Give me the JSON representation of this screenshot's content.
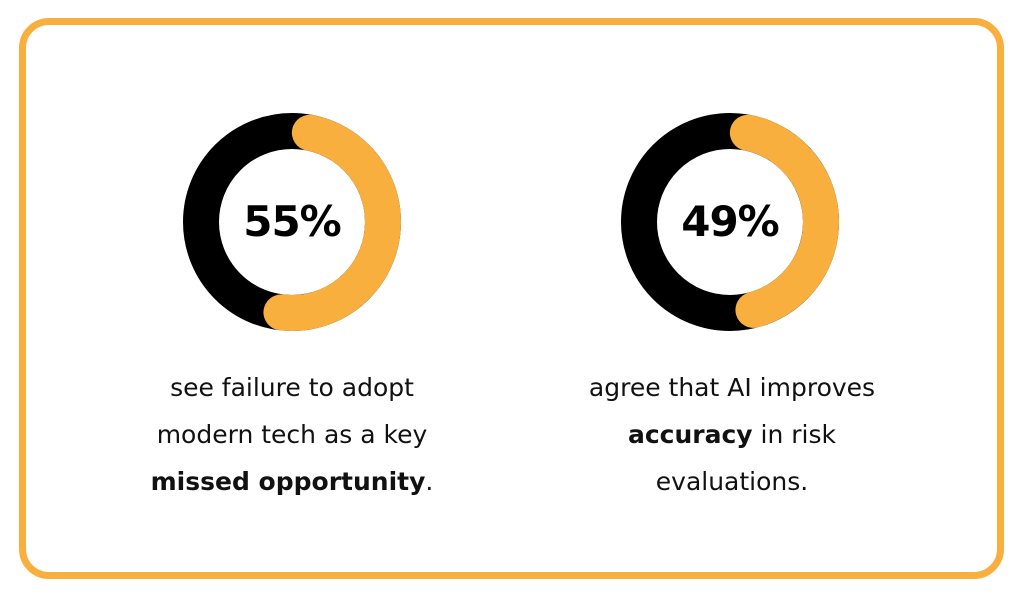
{
  "colors": {
    "accent": "#F9AF3D",
    "dark": "#000000"
  },
  "chart_data": [
    {
      "type": "pie",
      "variant": "donut",
      "value": 55,
      "label": "55%",
      "caption": {
        "line1": "see failure to adopt",
        "line2": "modern tech as a key",
        "bold": "missed opportunity",
        "after": "."
      }
    },
    {
      "type": "pie",
      "variant": "donut",
      "value": 49,
      "label": "49%",
      "caption": {
        "line1": "agree that AI improves",
        "bold": "accuracy",
        "after": " in risk",
        "line3": "evaluations."
      }
    }
  ]
}
